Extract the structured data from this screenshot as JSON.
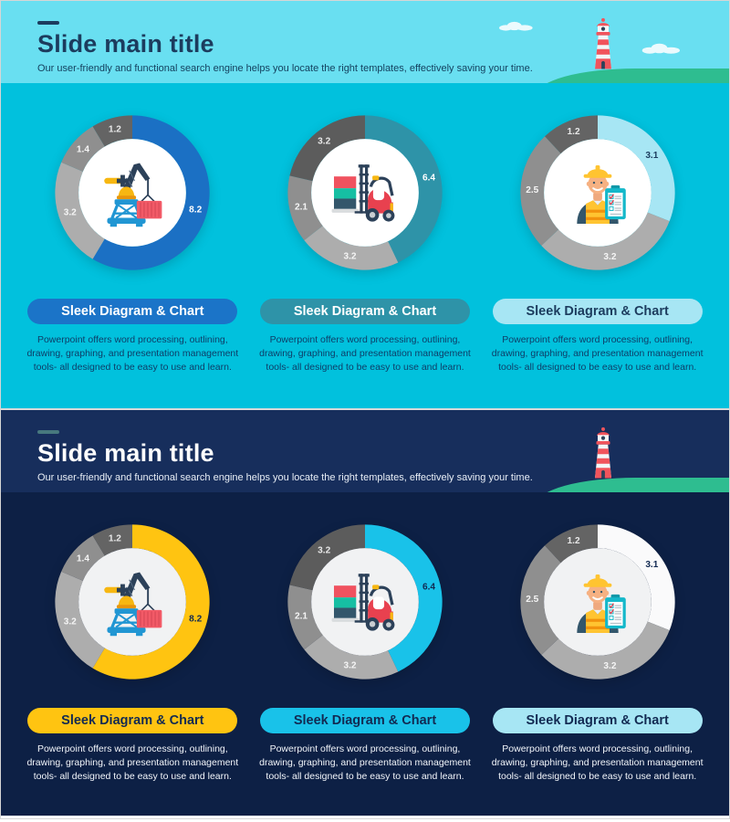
{
  "page": {
    "frame_border_color": "#D6D6D6"
  },
  "slides": [
    {
      "title": "Slide main title",
      "subtitle": "Our user-friendly and functional search engine helps you locate the right templates, effectively saving your time.",
      "theme": {
        "header_bg": "#69DFF1",
        "body_bg": "#01C1DD",
        "dash_color": "#1C3C5E",
        "title_color": "#1C3C5E",
        "subtitle_color": "#14415F",
        "text_color": "#0E3E68",
        "inner_circle": "#FFFFFF",
        "hill_color": "#2EBD90",
        "show_clouds": true
      },
      "scene": {
        "icons": [
          "lighthouse-icon",
          "cloud-icon",
          "hill-shape"
        ]
      },
      "cards": [
        {
          "icon": "crane-icon",
          "chart_index": 0,
          "label": "Sleek Diagram & Chart",
          "pill_bg": "#1B74C8",
          "pill_text": "#FFFFFF",
          "description": "Powerpoint offers word processing, outlining, drawing, graphing, and presentation management tools- all designed to be easy to use and learn."
        },
        {
          "icon": "forklift-icon",
          "chart_index": 1,
          "label": "Sleek Diagram & Chart",
          "pill_bg": "#2E93A8",
          "pill_text": "#FFFFFF",
          "description": "Powerpoint offers word processing, outlining, drawing, graphing, and presentation management tools- all designed to be easy to use and learn."
        },
        {
          "icon": "worker-icon",
          "chart_index": 2,
          "label": "Sleek Diagram & Chart",
          "pill_bg": "#A7E6F4",
          "pill_text": "#1C3C5E",
          "description": "Powerpoint offers word processing, outlining, drawing, graphing, and presentation management tools- all designed to be easy to use and learn."
        }
      ]
    },
    {
      "title": "Slide main title",
      "subtitle": "Our user-friendly and functional search engine helps you locate the right templates, effectively saving your time.",
      "theme": {
        "header_bg": "#172E5C",
        "body_bg": "#0D2045",
        "dash_color": "#47787E",
        "title_color": "#FFFFFF",
        "subtitle_color": "#E8EEF6",
        "text_color": "#F2F5FA",
        "inner_circle": "#F1F2F3",
        "hill_color": "#2EBD90",
        "show_clouds": false
      },
      "scene": {
        "icons": [
          "lighthouse-icon",
          "hill-shape"
        ]
      },
      "cards": [
        {
          "icon": "crane-icon",
          "chart_index": 3,
          "label": "Sleek Diagram & Chart",
          "pill_bg": "#FFC411",
          "pill_text": "#122A52",
          "description": "Powerpoint offers word processing, outlining, drawing, graphing, and presentation management tools- all designed to be easy to use and learn."
        },
        {
          "icon": "forklift-icon",
          "chart_index": 4,
          "label": "Sleek Diagram & Chart",
          "pill_bg": "#19C2E9",
          "pill_text": "#122A52",
          "description": "Powerpoint offers word processing, outlining, drawing, graphing, and presentation management tools- all designed to be easy to use and learn."
        },
        {
          "icon": "worker-icon",
          "chart_index": 5,
          "label": "Sleek Diagram & Chart",
          "pill_bg": "#A7E6F4",
          "pill_text": "#122A52",
          "description": "Powerpoint offers word processing, outlining, drawing, graphing, and presentation management tools- all designed to be easy to use and learn."
        }
      ]
    }
  ],
  "chart_data": [
    {
      "type": "pie",
      "donut": true,
      "start_angle_deg": 0,
      "direction": "clockwise",
      "title": "",
      "segments": [
        {
          "value": 8.2,
          "label": "8.2",
          "color": "#1B70C4",
          "label_color": "#FFFFFF"
        },
        {
          "value": 3.2,
          "label": "3.2",
          "color": "#ADADAD",
          "label_color": "#F5F5F5"
        },
        {
          "value": 1.4,
          "label": "1.4",
          "color": "#8F8F8F",
          "label_color": "#F5F5F5"
        },
        {
          "value": 1.2,
          "label": "1.2",
          "color": "#646464",
          "label_color": "#E8E8E8"
        }
      ]
    },
    {
      "type": "pie",
      "donut": true,
      "start_angle_deg": 0,
      "direction": "clockwise",
      "title": "",
      "segments": [
        {
          "value": 6.4,
          "label": "6.4",
          "color": "#2E93A8",
          "label_color": "#FFFFFF"
        },
        {
          "value": 3.2,
          "label": "3.2",
          "color": "#ADADAD",
          "label_color": "#F5F5F5"
        },
        {
          "value": 2.1,
          "label": "2.1",
          "color": "#8F8F8F",
          "label_color": "#F5F5F5"
        },
        {
          "value": 3.2,
          "label": "3.2",
          "color": "#5C5C5C",
          "label_color": "#E8E8E8"
        }
      ]
    },
    {
      "type": "pie",
      "donut": true,
      "start_angle_deg": 0,
      "direction": "clockwise",
      "title": "",
      "segments": [
        {
          "value": 3.1,
          "label": "3.1",
          "color": "#A7E6F4",
          "label_color": "#1C3C5E"
        },
        {
          "value": 3.2,
          "label": "3.2",
          "color": "#ADADAD",
          "label_color": "#F5F5F5"
        },
        {
          "value": 2.5,
          "label": "2.5",
          "color": "#8F8F8F",
          "label_color": "#F5F5F5"
        },
        {
          "value": 1.2,
          "label": "1.2",
          "color": "#646464",
          "label_color": "#E8E8E8"
        }
      ]
    },
    {
      "type": "pie",
      "donut": true,
      "start_angle_deg": 0,
      "direction": "clockwise",
      "title": "",
      "segments": [
        {
          "value": 8.2,
          "label": "8.2",
          "color": "#FFC411",
          "label_color": "#122A52"
        },
        {
          "value": 3.2,
          "label": "3.2",
          "color": "#ADADAD",
          "label_color": "#F5F5F5"
        },
        {
          "value": 1.4,
          "label": "1.4",
          "color": "#8F8F8F",
          "label_color": "#F5F5F5"
        },
        {
          "value": 1.2,
          "label": "1.2",
          "color": "#646464",
          "label_color": "#E8E8E8"
        }
      ]
    },
    {
      "type": "pie",
      "donut": true,
      "start_angle_deg": 0,
      "direction": "clockwise",
      "title": "",
      "segments": [
        {
          "value": 6.4,
          "label": "6.4",
          "color": "#19C2E9",
          "label_color": "#122A52"
        },
        {
          "value": 3.2,
          "label": "3.2",
          "color": "#ADADAD",
          "label_color": "#F5F5F5"
        },
        {
          "value": 2.1,
          "label": "2.1",
          "color": "#8F8F8F",
          "label_color": "#F5F5F5"
        },
        {
          "value": 3.2,
          "label": "3.2",
          "color": "#5C5C5C",
          "label_color": "#E8E8E8"
        }
      ]
    },
    {
      "type": "pie",
      "donut": true,
      "start_angle_deg": 0,
      "direction": "clockwise",
      "title": "",
      "segments": [
        {
          "value": 3.1,
          "label": "3.1",
          "color": "#FAFAFB",
          "label_color": "#122A52"
        },
        {
          "value": 3.2,
          "label": "3.2",
          "color": "#ADADAD",
          "label_color": "#F5F5F5"
        },
        {
          "value": 2.5,
          "label": "2.5",
          "color": "#8F8F8F",
          "label_color": "#F5F5F5"
        },
        {
          "value": 1.2,
          "label": "1.2",
          "color": "#646464",
          "label_color": "#E8E8E8"
        }
      ]
    }
  ]
}
